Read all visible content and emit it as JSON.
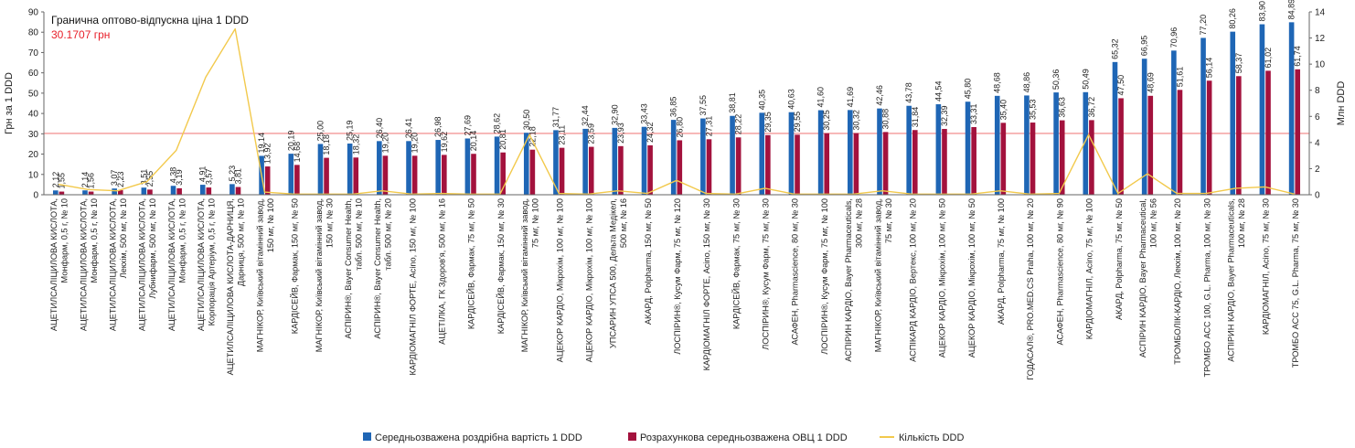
{
  "chart_data": {
    "type": "bar",
    "annotation": {
      "label": "Гранична оптово-відпускна ціна 1 DDD",
      "value_text": "30.1707 грн"
    },
    "threshold": 30.1707,
    "ylabel_left": "Грн за 1 DDD",
    "ylabel_right": "Млн DDD",
    "ylim_left": [
      0,
      90
    ],
    "ylim_right": [
      0,
      14
    ],
    "yticks_left": [
      "0",
      "10",
      "20",
      "30",
      "40",
      "50",
      "60",
      "70",
      "80",
      "90"
    ],
    "yticks_right": [
      "0",
      "2",
      "4",
      "6",
      "8",
      "10",
      "12",
      "14"
    ],
    "categories": [
      [
        "АЦЕТИЛСАЛІЦИЛОВА КИСЛОТА,",
        "Монфарм, 0,5 г, № 10"
      ],
      [
        "АЦЕТИЛСАЛІЦИЛОВА КИСЛОТА,",
        "Монфарм, 0,5 г, № 10"
      ],
      [
        "АЦЕТИЛСАЛІЦИЛОВА КИСЛОТА,",
        "Лекхім, 500 мг, № 10"
      ],
      [
        "АЦЕТИЛСАЛІЦИЛОВА КИСЛОТА,",
        "Лубнифарм, 500 мг, № 10"
      ],
      [
        "АЦЕТИЛСАЛІЦИЛОВА КИСЛОТА,",
        "Монфарм, 0,5 г, № 10"
      ],
      [
        "АЦЕТИЛСАЛІЦИЛОВА КИСЛОТА,",
        "Корпорація Артеріум, 0,5 г, № 10"
      ],
      [
        "АЦЕТИЛСАЛІЦИЛОВА КИСЛОТА-ДАРНИЦЯ,",
        "Дарниця, 500 мг, № 10"
      ],
      [
        "МАГНІКОР, Київський вітамінний завод,",
        "150 мг, № 100"
      ],
      [
        "КАРДІСЕЙВ, Фармак, 150 мг, № 50"
      ],
      [
        "МАГНІКОР, Київський вітамінний завод,",
        "150 мг, № 30"
      ],
      [
        "АСПІРИН®, Bayer Consumer Health,",
        "табл. 500 мг, № 10"
      ],
      [
        "АСПІРИН®, Bayer Consumer Health,",
        "табл. 500 мг, № 20"
      ],
      [
        "КАРДІОМАГНІЛ ФОРТЕ, Acino, 150 мг, № 100"
      ],
      [
        "АЦЕТІЛКА, ГК Здоров'я, 500 мг, № 16"
      ],
      [
        "КАРДІСЕЙВ, Фармак, 75 мг, № 50"
      ],
      [
        "КАРДІСЕЙВ, Фармак, 150 мг, № 30"
      ],
      [
        "МАГНІКОР, Київський вітамінний завод,",
        "75 мг, № 100"
      ],
      [
        "АЦЕКОР КАРДІО, Мікрохім, 100 мг, № 100"
      ],
      [
        "АЦЕКОР КАРДІО, Мікрохім, 100 мг, № 100"
      ],
      [
        "УПСАРИН УПСА 500, Дельта Медікел,",
        "500 мг, № 16"
      ],
      [
        "АКАРД, Polpharma, 150 мг, № 50"
      ],
      [
        "ЛОСПІРИН®, Кусум Фарм, 75 мг, № 120"
      ],
      [
        "КАРДІОМАГНІЛ ФОРТЕ, Acino, 150 мг, № 30"
      ],
      [
        "КАРДІСЕЙВ, Фармак, 75 мг, № 30"
      ],
      [
        "ЛОСПІРИН®, Кусум Фарм, 75 мг, № 30"
      ],
      [
        "АСАФЕН, Pharmascience, 80 мг, № 30"
      ],
      [
        "ЛОСПІРИН®, Кусум Фарм, 75 мг, № 100"
      ],
      [
        "АСПІРИН КАРДІО, Bayer Pharmaceuticals,",
        "300 мг, № 28"
      ],
      [
        "МАГНІКОР, Київський вітамінний завод,",
        "75 мг, № 30"
      ],
      [
        "АСПІКАРД КАРДІО, Вертекс, 100 мг, № 20"
      ],
      [
        "АЦЕКОР КАРДІО, Мікрохім, 100 мг, № 50"
      ],
      [
        "АЦЕКОР КАРДІО, Мікрохім, 100 мг, № 50"
      ],
      [
        "АКАРД, Polpharma, 75 мг, № 100"
      ],
      [
        "ГОДАСАЛ®, PRO.MED.CS Praha, 100 мг, № 20"
      ],
      [
        "АСАФЕН, Pharmascience, 80 мг, № 90"
      ],
      [
        "КАРДІОМАГНІЛ, Acino, 75 мг, № 100"
      ],
      [
        "АКАРД, Polpharma, 75 мг, № 50"
      ],
      [
        "АСПІРИН КАРДІО, Bayer Pharmaceutical,",
        "100 мг, № 56"
      ],
      [
        "ТРОМБОЛІК-КАРДІО, Лекхім, 100 мг, № 20"
      ],
      [
        "ТРОМБО АСС 100, G.L. Pharma, 100 мг, № 30"
      ],
      [
        "АСПІРИН КАРДІО, Bayer Pharmaceuticals,",
        "100 мг, № 28"
      ],
      [
        "КАРДІОМАГНІЛ, Acino, 75 мг, № 30"
      ],
      [
        "ТРОМБО АСС 75, G.L. Pharma, 75 мг, № 30"
      ]
    ],
    "series": [
      {
        "name": "Середньозважена роздрібна вартість 1 DDD",
        "color": "#1f66b5",
        "axis": "left",
        "labels": [
          "2,12",
          "2,14",
          "3,07",
          "3,51",
          "4,38",
          "4,91",
          "5,23",
          "19,14",
          "20,19",
          "25,00",
          "25,19",
          "26,40",
          "26,41",
          "26,98",
          "27,69",
          "28,62",
          "30,50",
          "31,77",
          "32,44",
          "32,90",
          "33,43",
          "36,85",
          "37,55",
          "38,81",
          "40,35",
          "40,63",
          "41,60",
          "41,69",
          "42,46",
          "43,78",
          "44,54",
          "45,80",
          "48,68",
          "48,86",
          "50,36",
          "50,49",
          "65,32",
          "66,95",
          "70,96",
          "77,20",
          "80,26",
          "83,90",
          "84,89"
        ],
        "values": [
          2.12,
          2.14,
          3.07,
          3.51,
          4.38,
          4.91,
          5.23,
          19.14,
          20.19,
          25.0,
          25.19,
          26.4,
          26.41,
          26.98,
          27.69,
          28.62,
          30.5,
          31.77,
          32.44,
          32.9,
          33.43,
          36.85,
          37.55,
          38.81,
          40.35,
          40.63,
          41.6,
          41.69,
          42.46,
          43.78,
          44.54,
          45.8,
          48.68,
          48.86,
          50.36,
          50.49,
          65.32,
          66.95,
          70.96,
          77.2,
          80.26,
          83.9,
          84.89
        ]
      },
      {
        "name": "Розрахункова середньозважена ОВЦ 1 DDD",
        "color": "#a3123d",
        "axis": "left",
        "labels": [
          "1,55",
          "1,56",
          "2,23",
          "2,55",
          "3,19",
          "3,57",
          "3,81",
          "13,92",
          "14,68",
          "18,18",
          "18,32",
          "19,20",
          "19,20",
          "19,62",
          "20,14",
          "20,81",
          "22,18",
          "23,11",
          "23,59",
          "23,93",
          "24,32",
          "26,80",
          "27,31",
          "28,22",
          "29,35",
          "29,55",
          "30,25",
          "30,32",
          "30,88",
          "31,84",
          "32,39",
          "33,31",
          "35,40",
          "35,53",
          "36,63",
          "36,72",
          "47,50",
          "48,69",
          "51,61",
          "56,14",
          "58,37",
          "61,02",
          "61,74"
        ],
        "values": [
          1.55,
          1.56,
          2.23,
          2.55,
          3.19,
          3.57,
          3.81,
          13.92,
          14.68,
          18.18,
          18.32,
          19.2,
          19.2,
          19.62,
          20.14,
          20.81,
          22.18,
          23.11,
          23.59,
          23.93,
          24.32,
          26.8,
          27.31,
          28.22,
          29.35,
          29.55,
          30.25,
          30.32,
          30.88,
          31.84,
          32.39,
          33.31,
          35.4,
          35.53,
          36.63,
          36.72,
          47.5,
          48.69,
          51.61,
          56.14,
          58.37,
          61.02,
          61.74
        ]
      },
      {
        "name": "Кількість DDD",
        "color": "#f2c94c",
        "axis": "right",
        "type": "line",
        "values": [
          0.8,
          0.4,
          0.3,
          1.0,
          3.4,
          9.0,
          12.7,
          0.2,
          0.05,
          0.05,
          0.05,
          0.3,
          0.05,
          0.1,
          0.05,
          0.05,
          4.6,
          0.1,
          0.05,
          0.3,
          0.1,
          1.1,
          0.1,
          0.05,
          0.5,
          0.05,
          0.05,
          0.05,
          0.3,
          0.05,
          0.05,
          0.05,
          0.3,
          0.05,
          0.1,
          4.6,
          0.1,
          1.6,
          0.1,
          0.1,
          0.5,
          0.6,
          0.05
        ]
      }
    ],
    "legend_position": "bottom"
  }
}
